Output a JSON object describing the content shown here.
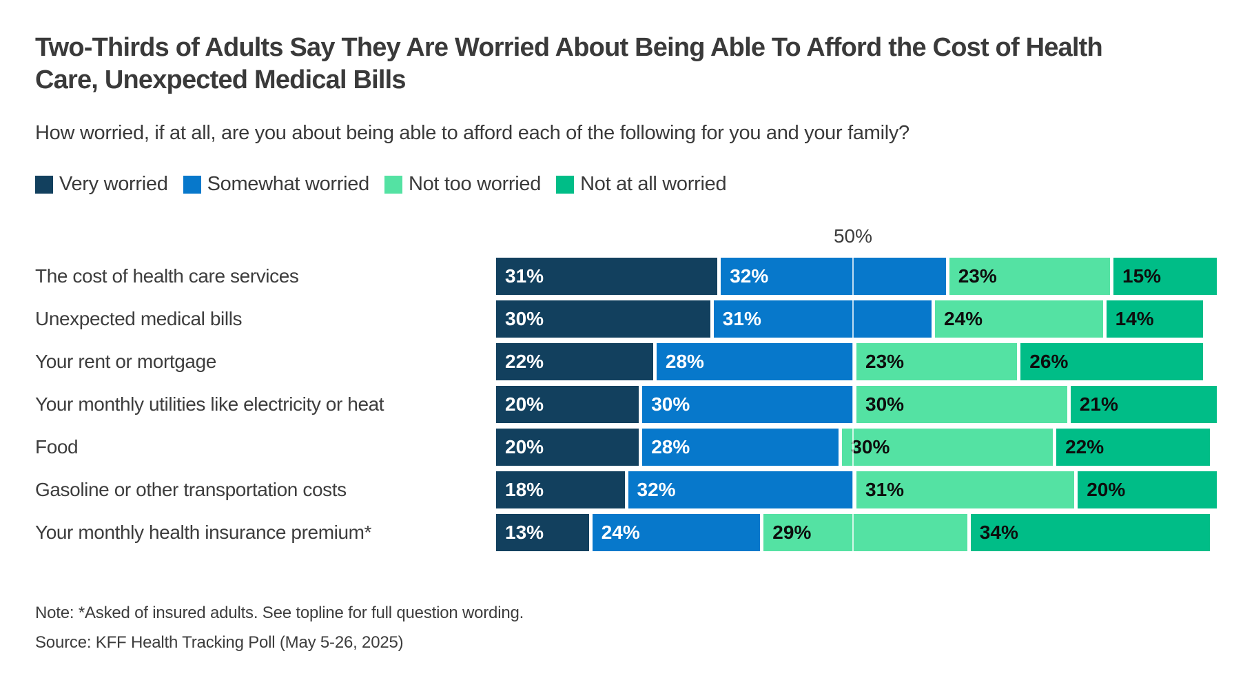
{
  "header": {
    "title_lines": [
      "Two-Thirds of Adults Say They Are Worried About Being Able To Afford the Cost of Health",
      "Care, Unexpected Medical Bills"
    ],
    "subtitle": "How worried, if at all, are you about being able to afford each of the following for you and your family?"
  },
  "chart_data": {
    "type": "bar",
    "orientation": "horizontal",
    "stacked": true,
    "value_suffix": "%",
    "xlim": [
      0,
      100
    ],
    "gridline": {
      "value": 50,
      "label": "50%"
    },
    "legend_position": "top",
    "categories": [
      "The cost of health care services",
      "Unexpected medical bills",
      "Your rent or mortgage",
      "Your monthly utilities like electricity or heat",
      "Food",
      "Gasoline or other transportation costs",
      "Your monthly health insurance premium*"
    ],
    "series": [
      {
        "name": "Very worried",
        "color": "#12405e",
        "text_color": "#ffffff",
        "values": [
          31,
          30,
          22,
          20,
          20,
          18,
          13
        ]
      },
      {
        "name": "Somewhat worried",
        "color": "#0778cb",
        "text_color": "#ffffff",
        "values": [
          32,
          31,
          28,
          30,
          28,
          32,
          24
        ]
      },
      {
        "name": "Not too worried",
        "color": "#54e2a3",
        "text_color": "#0d0d0d",
        "values": [
          23,
          24,
          23,
          30,
          30,
          31,
          29
        ]
      },
      {
        "name": "Not at all worried",
        "color": "#00bd87",
        "text_color": "#0d0d0d",
        "values": [
          15,
          14,
          26,
          21,
          22,
          20,
          34
        ]
      }
    ]
  },
  "footer": {
    "note": "Note: *Asked of insured adults. See topline for full question wording.",
    "source": "Source: KFF Health Tracking Poll (May 5-26, 2025)"
  }
}
